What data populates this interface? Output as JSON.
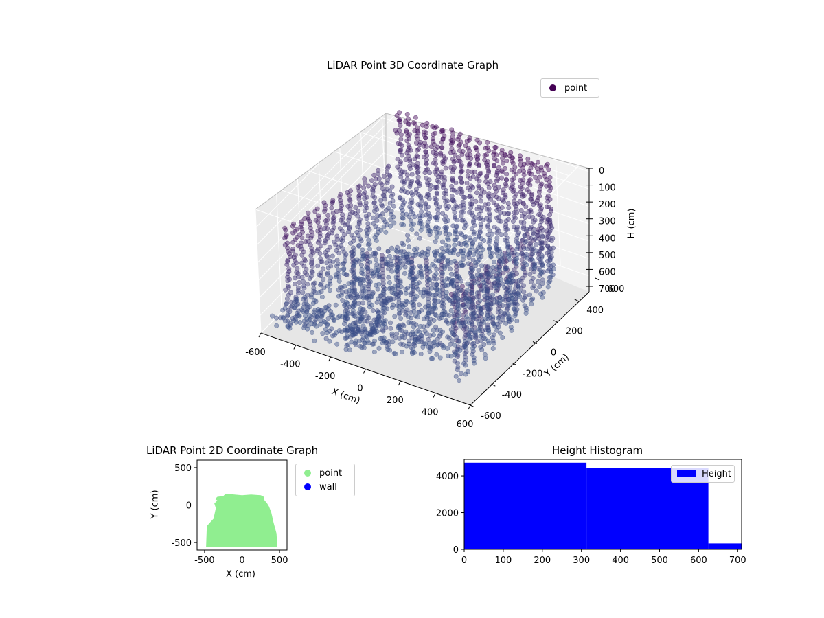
{
  "chart_data": [
    {
      "id": "scatter3d",
      "type": "scatter",
      "projection": "3d",
      "title": "LiDAR Point 3D Coordinate Graph",
      "xlabel": "X (cm)",
      "ylabel": "Y (cm)",
      "zlabel": "H (cm)",
      "xlim": [
        -600,
        600
      ],
      "ylim": [
        -600,
        600
      ],
      "zlim": [
        700,
        0
      ],
      "x_ticks": [
        "-600",
        "-400",
        "-200",
        "0",
        "200",
        "400",
        "600"
      ],
      "y_ticks": [
        "-600",
        "-400",
        "-200",
        "0",
        "200",
        "400",
        "600"
      ],
      "z_ticks": [
        "0",
        "100",
        "200",
        "300",
        "400",
        "500",
        "600",
        "700"
      ],
      "legend": [
        {
          "name": "point",
          "color": "#440154"
        }
      ],
      "legend_position": "upper right",
      "grid": true,
      "series": [
        {
          "name": "point",
          "colormap": "viridis",
          "shape": "room scan: floor disk near H≈600–700 plus vertical wall columns rising to H≈0 along the back and sides",
          "floor_radius_cm": 450,
          "wall_rows_y_cm": [
            -500,
            500
          ],
          "wall_x_cm": [
            -500,
            500
          ]
        }
      ]
    },
    {
      "id": "scatter2d",
      "type": "scatter",
      "title": "LiDAR Point 2D Coordinate Graph",
      "xlabel": "X (cm)",
      "ylabel": "Y (cm)",
      "xlim": [
        -600,
        600
      ],
      "ylim": [
        -600,
        600
      ],
      "x_ticks": [
        "-500",
        "0",
        "500"
      ],
      "y_ticks": [
        "-500",
        "0",
        "500"
      ],
      "legend": [
        {
          "name": "point",
          "color": "#90ee90"
        },
        {
          "name": "wall",
          "color": "#0000ff"
        }
      ],
      "legend_position": "outside right",
      "series": [
        {
          "name": "point",
          "color": "#90ee90",
          "outline": [
            [
              -480,
              -560
            ],
            [
              -470,
              -280
            ],
            [
              -380,
              -180
            ],
            [
              -350,
              -40
            ],
            [
              -370,
              20
            ],
            [
              -330,
              60
            ],
            [
              -360,
              80
            ],
            [
              -330,
              110
            ],
            [
              -250,
              120
            ],
            [
              -220,
              150
            ],
            [
              -100,
              140
            ],
            [
              0,
              130
            ],
            [
              120,
              140
            ],
            [
              250,
              130
            ],
            [
              290,
              110
            ],
            [
              300,
              60
            ],
            [
              330,
              30
            ],
            [
              360,
              -20
            ],
            [
              390,
              -100
            ],
            [
              420,
              -230
            ],
            [
              460,
              -380
            ],
            [
              470,
              -560
            ]
          ]
        }
      ]
    },
    {
      "id": "hist",
      "type": "bar",
      "title": "Height Histogram",
      "xlim": [
        0,
        710
      ],
      "ylim": [
        0,
        4900
      ],
      "x_ticks": [
        "0",
        "100",
        "200",
        "300",
        "400",
        "500",
        "600",
        "700"
      ],
      "y_ticks": [
        "0",
        "2000",
        "4000"
      ],
      "legend": [
        {
          "name": "Height",
          "color": "#0000ff"
        }
      ],
      "legend_position": "upper right",
      "series": [
        {
          "name": "Height",
          "color": "#0000ff",
          "bins": [
            [
              0,
              313,
              4720
            ],
            [
              313,
              625,
              4450
            ],
            [
              625,
              710,
              320
            ]
          ]
        }
      ]
    }
  ]
}
